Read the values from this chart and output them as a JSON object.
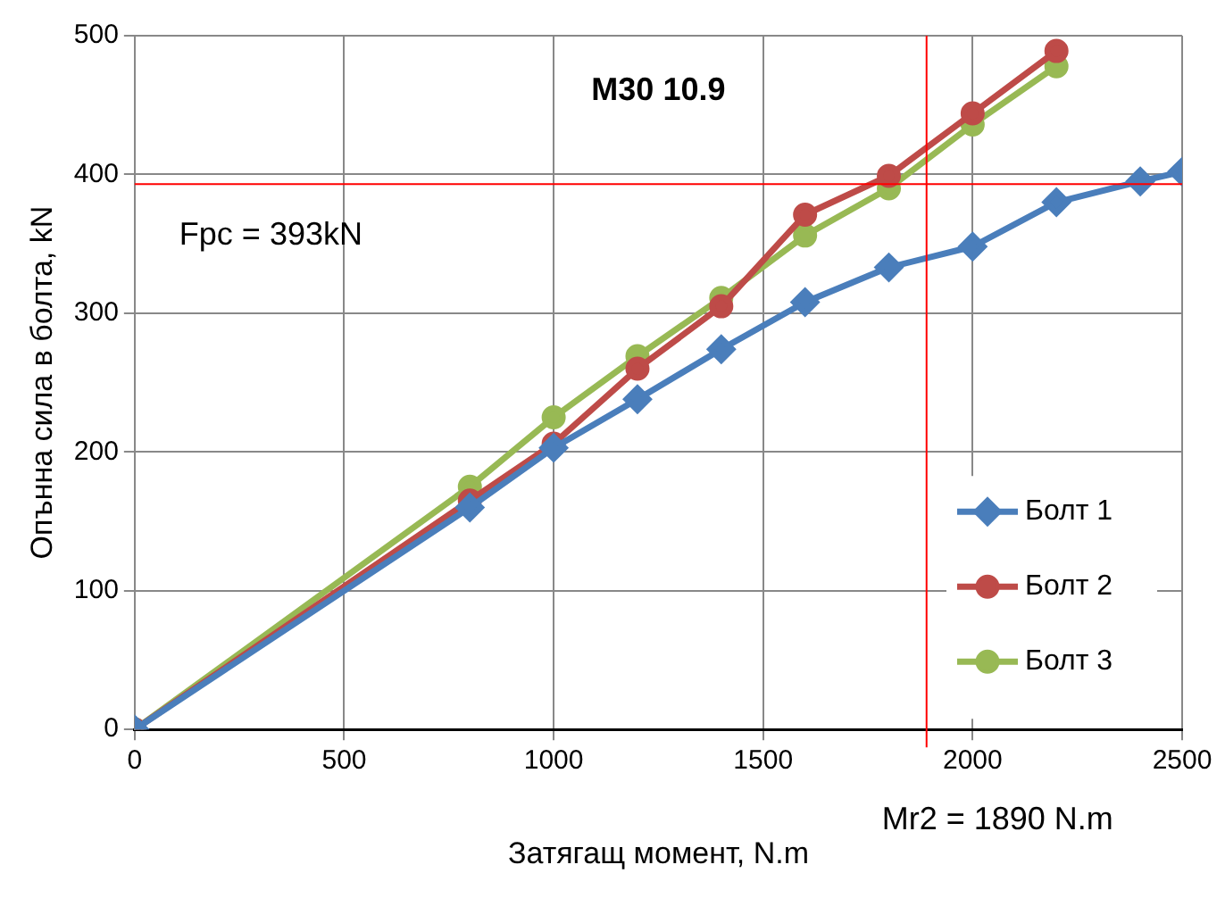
{
  "chart_data": {
    "type": "line",
    "title": "M30 10.9",
    "xlabel": "Затягащ момент, N.m",
    "ylabel": "Опънна сила в болта, kN",
    "xlim": [
      0,
      2500
    ],
    "xticks": [
      0,
      500,
      1000,
      1500,
      2000,
      2500
    ],
    "ylim": [
      0,
      500
    ],
    "yticks": [
      0,
      100,
      200,
      300,
      400,
      500
    ],
    "grid": true,
    "legend": "bottom right",
    "series": [
      {
        "name": "Болт 1",
        "color": "#4a7ebb",
        "marker": "diamond",
        "x": [
          0,
          800,
          1000,
          1200,
          1400,
          1600,
          1800,
          2000,
          2200,
          2400,
          2500
        ],
        "values": [
          0,
          160,
          203,
          238,
          274,
          308,
          333,
          348,
          380,
          395,
          402
        ]
      },
      {
        "name": "Болт 2",
        "color": "#be4b48",
        "marker": "circle",
        "x": [
          0,
          800,
          1000,
          1200,
          1400,
          1600,
          1800,
          2000,
          2200
        ],
        "values": [
          0,
          165,
          206,
          260,
          305,
          371,
          399,
          444,
          489
        ]
      },
      {
        "name": "Болт 3",
        "color": "#98b954",
        "marker": "circle",
        "x": [
          0,
          800,
          1000,
          1200,
          1400,
          1600,
          1800,
          2000,
          2200
        ],
        "values": [
          0,
          175,
          225,
          269,
          311,
          356,
          390,
          436,
          478
        ]
      }
    ],
    "ref_lines": [
      {
        "axis": "y",
        "value": 393,
        "label": "Fpc = 393kN",
        "color": "#ff0000"
      },
      {
        "axis": "x",
        "value": 1890,
        "label": "Mr2 = 1890 N.m",
        "color": "#ff0000"
      }
    ]
  }
}
